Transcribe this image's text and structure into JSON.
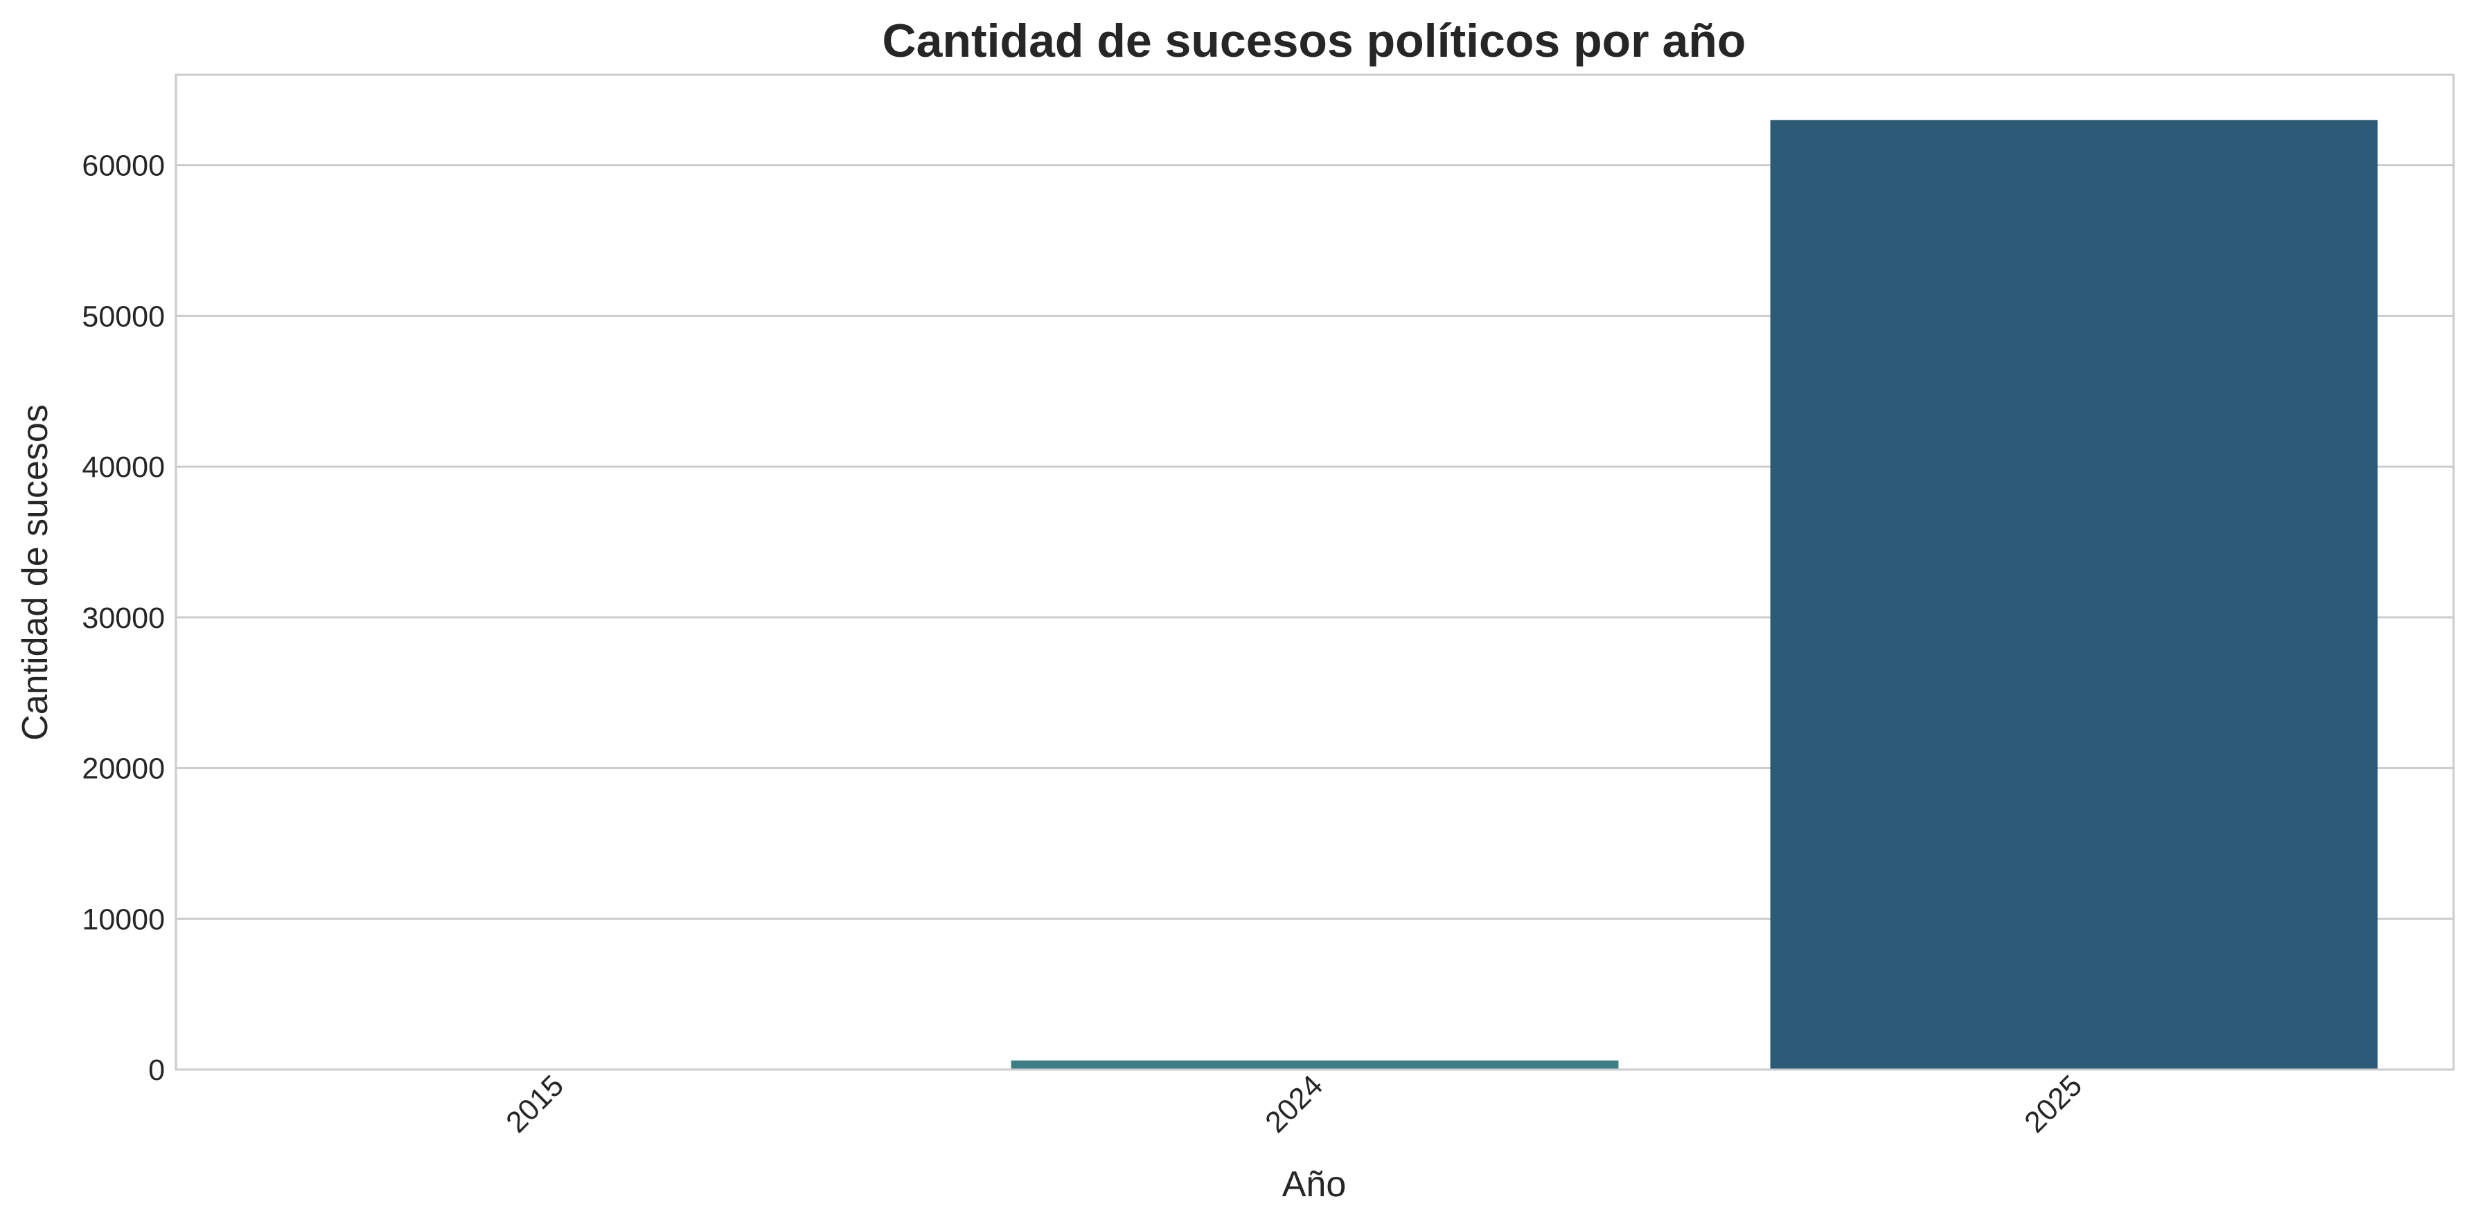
{
  "chart_data": {
    "type": "bar",
    "title": "Cantidad de sucesos políticos por año",
    "xlabel": "Año",
    "ylabel": "Cantidad de sucesos",
    "categories": [
      "2015",
      "2024",
      "2025"
    ],
    "values": [
      5,
      600,
      63000
    ],
    "colors": [
      "#3a1e5c",
      "#3a7f86",
      "#2c5b78"
    ],
    "ylim": [
      0,
      66000
    ],
    "yticks": [
      0,
      10000,
      20000,
      30000,
      40000,
      50000,
      60000
    ],
    "grid": "horizontal",
    "x_tick_rotation": -45
  }
}
